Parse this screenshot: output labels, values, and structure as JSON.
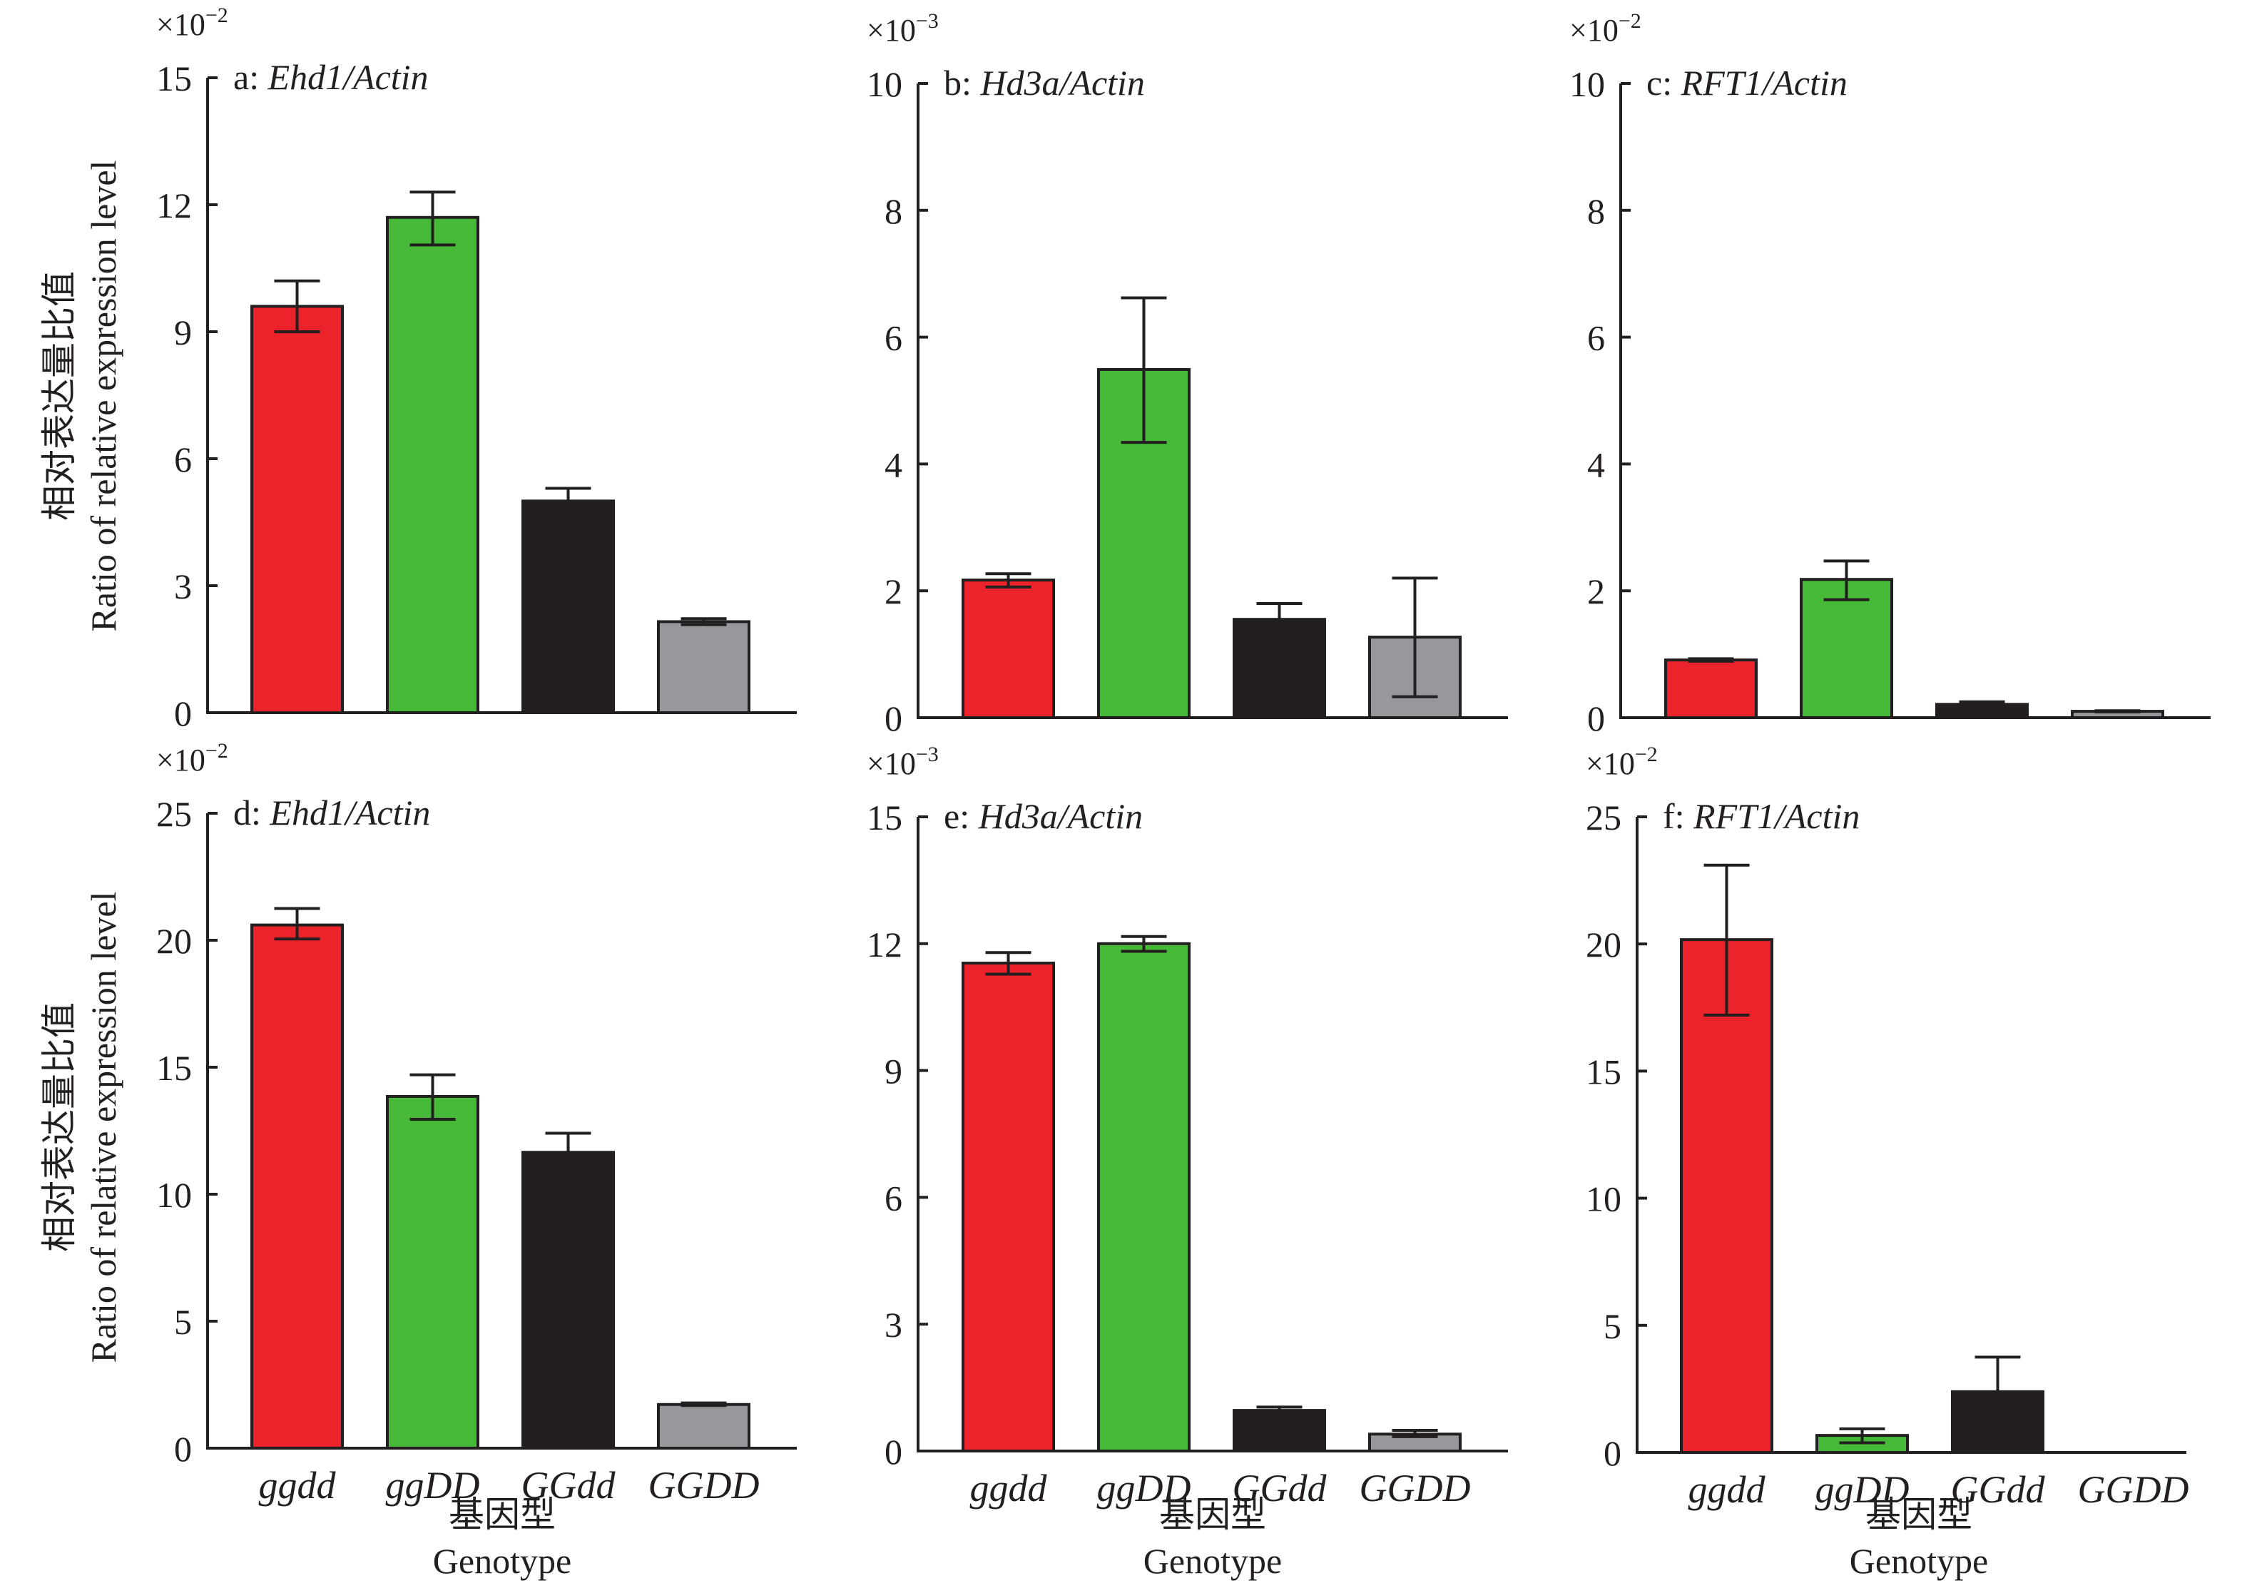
{
  "figure": {
    "ylabel_cn": "相对表达量比值",
    "ylabel_en": "Ratio of relative expression level",
    "xlabel_cn": "基因型",
    "xlabel_en": "Genotype"
  },
  "chart_data": [
    {
      "type": "bar",
      "panel": "a",
      "title_prefix": "a: ",
      "title_gene": "Ehd1/Actin",
      "scale_base": "×10",
      "scale_exp": "−2",
      "categories": [
        "ggdd",
        "ggDD",
        "GGdd",
        "GGDD"
      ],
      "values": [
        9.6,
        11.7,
        5.0,
        2.15
      ],
      "error_upper": [
        10.2,
        12.3,
        5.3,
        2.22
      ],
      "error_lower": [
        9.0,
        11.05,
        null,
        2.08
      ],
      "colors": [
        "#ec232a",
        "#46b938",
        "#231f20",
        "#96989e"
      ],
      "ylim": [
        0,
        15
      ],
      "yticks": [
        0,
        3,
        6,
        9,
        12,
        15
      ],
      "show_xlabels": false
    },
    {
      "type": "bar",
      "panel": "b",
      "title_prefix": "b: ",
      "title_gene": "Hd3a/Actin",
      "scale_base": "×10",
      "scale_exp": "−3",
      "categories": [
        "ggdd",
        "ggDD",
        "GGdd",
        "GGDD"
      ],
      "values": [
        2.17,
        5.49,
        1.55,
        1.27
      ],
      "error_upper": [
        2.27,
        6.62,
        1.8,
        2.2
      ],
      "error_lower": [
        2.06,
        4.34,
        null,
        0.33
      ],
      "colors": [
        "#ec232a",
        "#46b938",
        "#231f20",
        "#96989e"
      ],
      "ylim": [
        0,
        10
      ],
      "yticks": [
        0,
        2,
        4,
        6,
        8,
        10
      ],
      "show_xlabels": false
    },
    {
      "type": "bar",
      "panel": "c",
      "title_prefix": "c: ",
      "title_gene": "RFT1/Actin",
      "scale_base": "×10",
      "scale_exp": "−2",
      "categories": [
        "ggdd",
        "ggDD",
        "GGdd",
        "GGDD"
      ],
      "values": [
        0.91,
        2.18,
        0.21,
        0.1
      ],
      "error_upper": [
        0.93,
        2.47,
        0.25,
        0.11
      ],
      "error_lower": [
        0.89,
        1.86,
        null,
        0.09
      ],
      "colors": [
        "#ec232a",
        "#46b938",
        "#231f20",
        "#96989e"
      ],
      "ylim": [
        0,
        10
      ],
      "yticks": [
        0,
        2,
        4,
        6,
        8,
        10
      ],
      "show_xlabels": false
    },
    {
      "type": "bar",
      "panel": "d",
      "title_prefix": "d: ",
      "title_gene": "Ehd1/Actin",
      "scale_base": "×10",
      "scale_exp": "−2",
      "categories": [
        "ggdd",
        "ggDD",
        "GGdd",
        "GGDD"
      ],
      "values": [
        20.6,
        13.85,
        11.65,
        1.72
      ],
      "error_upper": [
        21.25,
        14.7,
        12.4,
        1.78
      ],
      "error_lower": [
        20.05,
        12.95,
        null,
        1.68
      ],
      "colors": [
        "#ec232a",
        "#46b938",
        "#231f20",
        "#96989e"
      ],
      "ylim": [
        0,
        25
      ],
      "yticks": [
        0,
        5,
        10,
        15,
        20,
        25
      ],
      "show_xlabels": true
    },
    {
      "type": "bar",
      "panel": "e",
      "title_prefix": "e: ",
      "title_gene": "Hd3a/Actin",
      "scale_base": "×10",
      "scale_exp": "−3",
      "categories": [
        "ggdd",
        "ggDD",
        "GGdd",
        "GGDD"
      ],
      "values": [
        11.54,
        12.0,
        0.96,
        0.4
      ],
      "error_upper": [
        11.79,
        12.17,
        1.04,
        0.49
      ],
      "error_lower": [
        11.28,
        11.82,
        null,
        0.34
      ],
      "colors": [
        "#ec232a",
        "#46b938",
        "#231f20",
        "#96989e"
      ],
      "ylim": [
        0,
        15
      ],
      "yticks": [
        0,
        3,
        6,
        9,
        12,
        15
      ],
      "show_xlabels": true
    },
    {
      "type": "bar",
      "panel": "f",
      "title_prefix": "f: ",
      "title_gene": "RFT1/Actin",
      "scale_base": "×10",
      "scale_exp": "−2",
      "categories": [
        "ggdd",
        "ggDD",
        "GGdd",
        "GGDD"
      ],
      "values": [
        20.17,
        0.67,
        2.39,
        0
      ],
      "error_upper": [
        23.1,
        0.93,
        3.75,
        null
      ],
      "error_lower": [
        17.2,
        0.38,
        null,
        null
      ],
      "colors": [
        "#ec232a",
        "#46b938",
        "#231f20",
        "#96989e"
      ],
      "ylim": [
        0,
        25
      ],
      "yticks": [
        0,
        5,
        10,
        15,
        20,
        25
      ],
      "show_xlabels": true
    }
  ]
}
